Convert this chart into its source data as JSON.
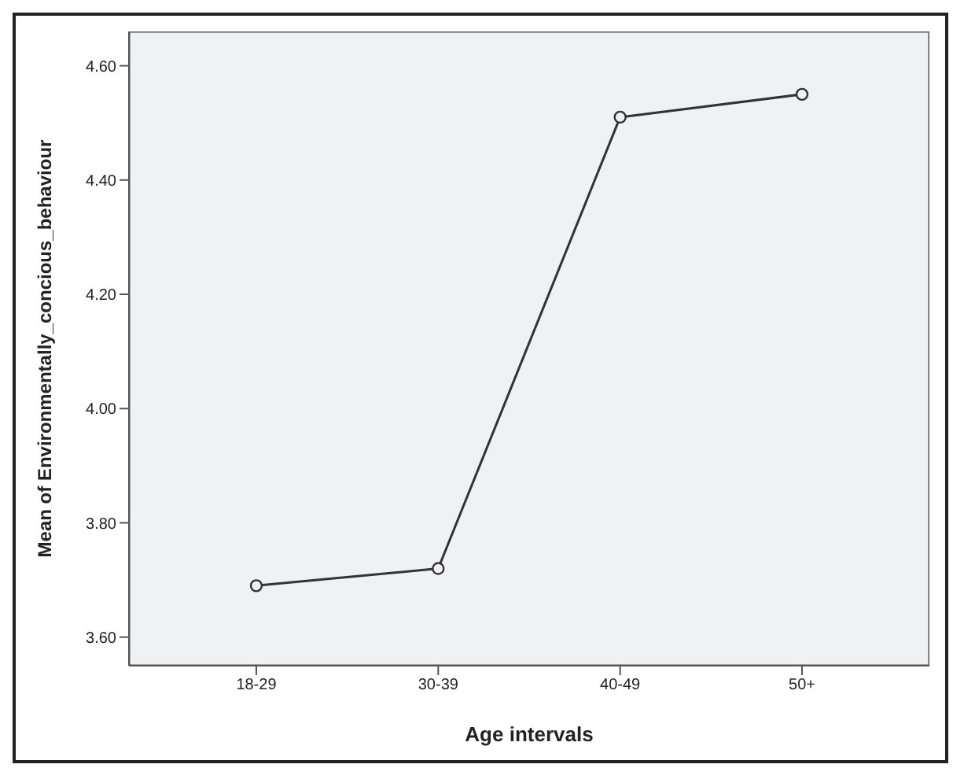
{
  "chart_data": {
    "type": "line",
    "xlabel": "Age intervals",
    "ylabel": "Mean of Environmentally_concious_behaviour",
    "categories": [
      "18-29",
      "30-39",
      "40-49",
      "50+"
    ],
    "series": [
      {
        "color": "#333333",
        "values": [
          3.69,
          3.72,
          4.51,
          4.55
        ]
      }
    ],
    "ylim": [
      3.55,
      4.66
    ],
    "yticks": [
      {
        "value": 3.6,
        "label": "3.60"
      },
      {
        "value": 3.8,
        "label": "3.80"
      },
      {
        "value": 4.0,
        "label": "4.00"
      },
      {
        "value": 4.2,
        "label": "4.20"
      },
      {
        "value": 4.4,
        "label": "4.40"
      },
      {
        "value": 4.6,
        "label": "4.60"
      }
    ],
    "grid": false,
    "legend": false,
    "marker": "circle",
    "line_style": "solid"
  }
}
